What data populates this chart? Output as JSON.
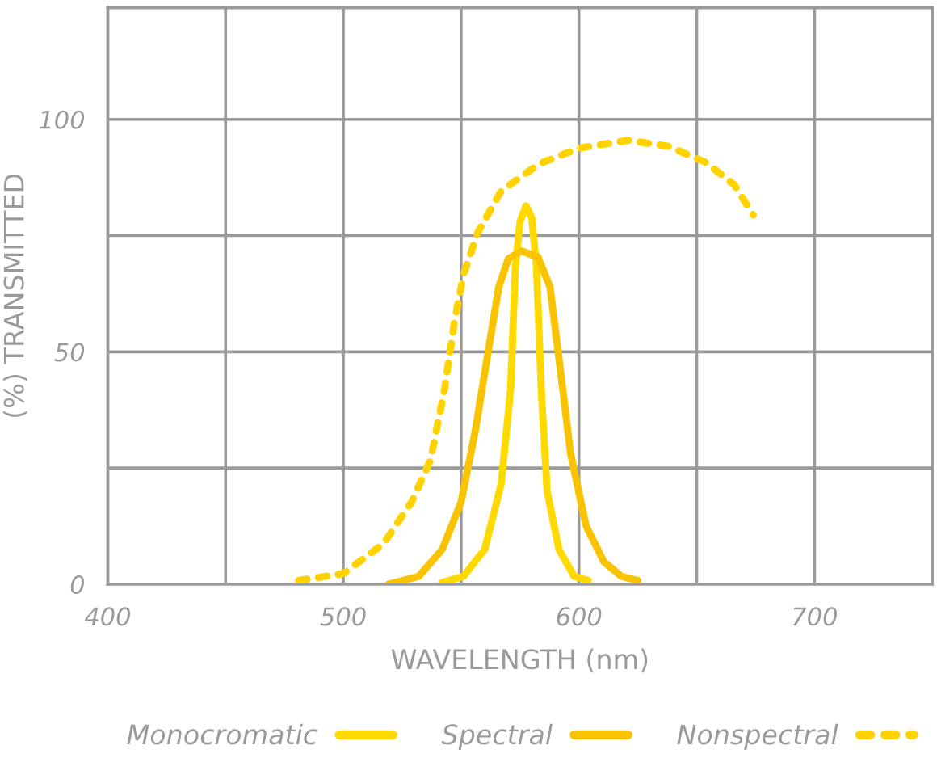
{
  "chart_data": {
    "type": "line",
    "xlabel": "WAVELENGTH (nm)",
    "ylabel": "(%) TRANSMITTED",
    "xlim": [
      400,
      750
    ],
    "ylim": [
      0,
      124
    ],
    "xticks": [
      400,
      {
        "value": 450,
        "label": null
      },
      500,
      {
        "value": 550,
        "label": null
      },
      600,
      {
        "value": 650,
        "label": null
      },
      700
    ],
    "yticks": [
      0,
      {
        "value": 25,
        "label": null
      },
      50,
      {
        "value": 75,
        "label": null
      },
      100
    ],
    "grid": true,
    "legend": "bottom",
    "marker": "none",
    "series": [
      {
        "name": "Monocromatic",
        "color": "#ffd900",
        "line_style": "solid",
        "x": [
          542,
          551,
          560,
          567,
          571,
          573,
          575,
          577.5,
          580,
          582,
          584,
          586.5,
          591.5,
          598,
          604
        ],
        "values": [
          0.4,
          1.7,
          7.5,
          21.6,
          42,
          68,
          78,
          81.4,
          78.8,
          68,
          42,
          20,
          7.5,
          1.7,
          0.8
        ]
      },
      {
        "name": "Spectral",
        "color": "#f9c300",
        "line_style": "solid",
        "x": [
          519,
          532,
          542,
          550,
          556,
          561,
          566,
          570,
          575.5,
          582.6,
          587.7,
          591.5,
          596.5,
          603,
          610.5,
          618,
          625
        ],
        "values": [
          0,
          1.7,
          7.5,
          17.7,
          33,
          48.6,
          64,
          70,
          71.7,
          70.4,
          64,
          48.6,
          28,
          12.6,
          4.9,
          1.7,
          0.8
        ]
      },
      {
        "name": "Nonspectral",
        "color": "#ffd200",
        "line_style": "dotted",
        "x": [
          481,
          500,
          517,
          529,
          537,
          543,
          547,
          551,
          557,
          567,
          583,
          600,
          621,
          638,
          654,
          666,
          674
        ],
        "values": [
          0.8,
          2.3,
          8.7,
          17.7,
          26.7,
          42,
          56,
          66.6,
          75.6,
          84.6,
          90.4,
          93.8,
          95.5,
          94.2,
          90.7,
          85.9,
          79.4
        ]
      }
    ]
  }
}
